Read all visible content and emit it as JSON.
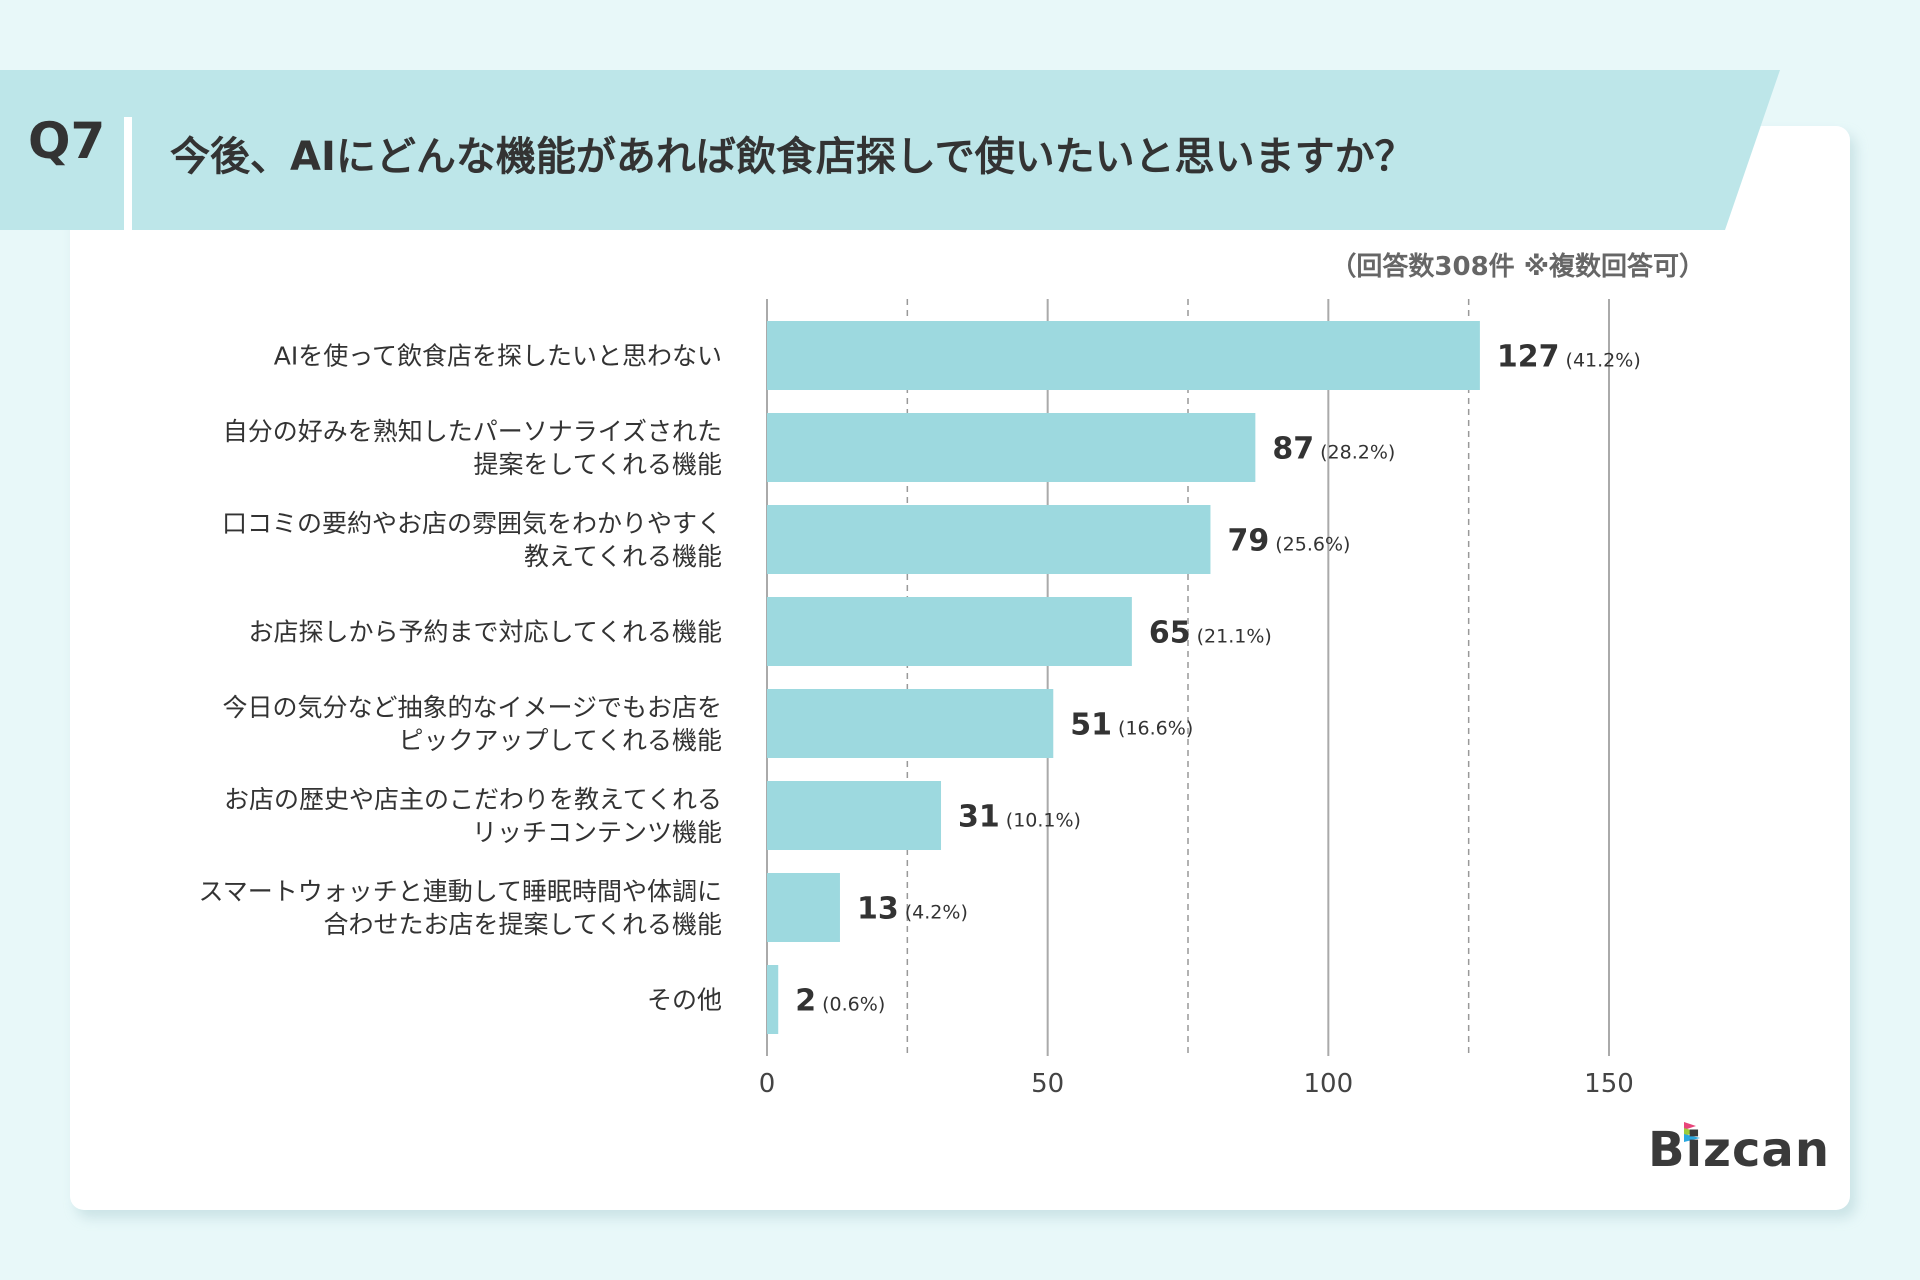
{
  "header": {
    "question_number": "Q7",
    "title": "今後、AIにどんな機能があれば飲食店探しで使いたいと思いますか？"
  },
  "note": "（回答数308件 ※複数回答可）",
  "logo": "Bizcan",
  "colors": {
    "background": "#e8f8f9",
    "band": "#bde6e9",
    "bar": "#9dd9df",
    "grid": "#aaaaaa"
  },
  "chart_data": {
    "type": "bar",
    "orientation": "horizontal",
    "categories": [
      [
        "AIを使って飲食店を探したいと思わない"
      ],
      [
        "自分の好みを熟知したパーソナライズされた",
        "提案をしてくれる機能"
      ],
      [
        "口コミの要約やお店の雰囲気をわかりやすく",
        "教えてくれる機能"
      ],
      [
        "お店探しから予約まで対応してくれる機能"
      ],
      [
        "今日の気分など抽象的なイメージでもお店を",
        "ピックアップしてくれる機能"
      ],
      [
        "お店の歴史や店主のこだわりを教えてくれる",
        "リッチコンテンツ機能"
      ],
      [
        "スマートウォッチと連動して睡眠時間や体調に",
        "合わせたお店を提案してくれる機能"
      ],
      [
        "その他"
      ]
    ],
    "values": [
      127,
      87,
      79,
      65,
      51,
      31,
      13,
      2
    ],
    "percent_labels": [
      "(41.2%)",
      "(28.2%)",
      "(25.6%)",
      "(21.1%)",
      "(16.6%)",
      "(10.1%)",
      "(4.2%)",
      "(0.6%)"
    ],
    "xlim": [
      0,
      150
    ],
    "xticks": [
      "0",
      "50",
      "100",
      "150"
    ],
    "grid": true,
    "minor_grid_dashed": [
      25,
      75,
      125
    ]
  }
}
